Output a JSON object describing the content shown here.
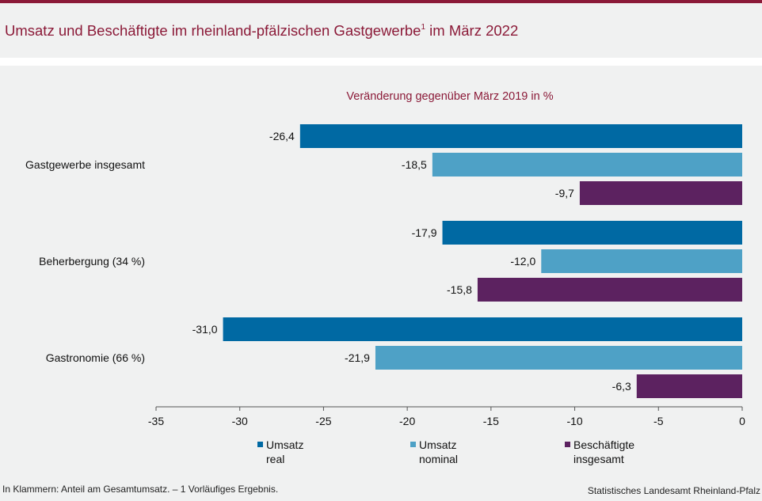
{
  "title": "Umsatz und Beschäftigte im rheinland-pfälzischen Gastgewerbe",
  "title_footnote_mark": "1",
  "title_suffix": " im März 2022",
  "footnote": "In Klammern: Anteil am Gesamtumsatz. – 1 Vorläufiges Ergebnis.",
  "source": "Statistisches Landesamt Rheinland-Pfalz",
  "chart_data": {
    "type": "bar",
    "orientation": "horizontal",
    "subtitle": "Veränderung gegenüber März 2019 in %",
    "categories": [
      "Gastgewerbe insgesamt",
      "Beherbergung (34 %)",
      "Gastronomie (66 %)"
    ],
    "series": [
      {
        "name": "Umsatz real",
        "name_lines": [
          "Umsatz",
          "real"
        ],
        "color": "#0069a3",
        "values": [
          -26.4,
          -17.9,
          -31.0
        ],
        "labels": [
          "-26,4",
          "-17,9",
          "-31,0"
        ]
      },
      {
        "name": "Umsatz nominal",
        "name_lines": [
          "Umsatz",
          "nominal"
        ],
        "color": "#4ea1c6",
        "values": [
          -18.5,
          -12.0,
          -21.9
        ],
        "labels": [
          "-18,5",
          "-12,0",
          "-21,9"
        ]
      },
      {
        "name": "Beschäftigte insgesamt",
        "name_lines": [
          "Beschäftigte",
          "insgesamt"
        ],
        "color": "#5c2260",
        "values": [
          -9.7,
          -15.8,
          -6.3
        ],
        "labels": [
          "-9,7",
          "-15,8",
          "-6,3"
        ]
      }
    ],
    "xlim": [
      -35,
      0
    ],
    "xticks": [
      -35,
      -30,
      -25,
      -20,
      -15,
      -10,
      -5,
      0
    ],
    "xtick_labels": [
      "-35",
      "-30",
      "-25",
      "-20",
      "-15",
      "-10",
      "-5",
      "0"
    ],
    "legend_position": "bottom",
    "grid": false
  }
}
